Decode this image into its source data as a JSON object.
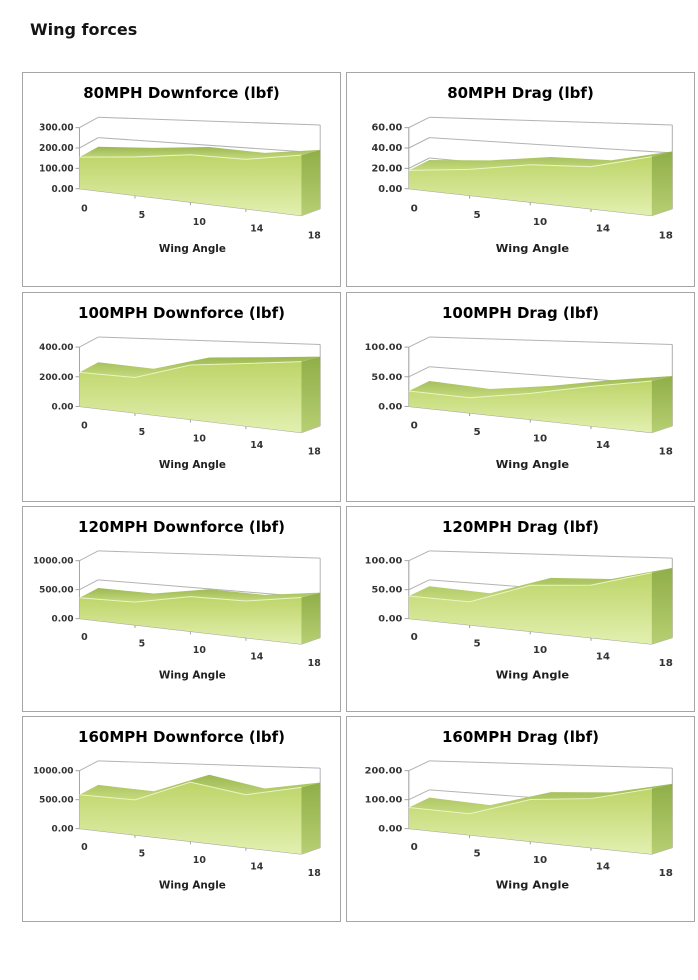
{
  "page": {
    "title": "Wing forces",
    "background": "#ffffff"
  },
  "axis": {
    "categories": [
      "0",
      "5",
      "10",
      "14",
      "18"
    ],
    "xlabel": "Wing Angle"
  },
  "colors": {
    "box_border": "#a6a6a6",
    "grid_line": "#b3b3b3",
    "axis_line": "#a3a3a3",
    "label_text": "#333333",
    "band_dark": "#9cb852",
    "band_light": "#c6da7e",
    "face_top": "#bdd468",
    "face_bottom": "#e2f0b0",
    "side_dark": "#8fae48",
    "side_light": "#b7cf72",
    "highlight": "#eaf4c2"
  },
  "chart_data": {
    "type": "area",
    "variant": "3d-area",
    "categories": [
      0,
      5,
      10,
      14,
      18
    ],
    "xlabel": "Wing Angle",
    "grid": true,
    "legend": "none",
    "charts": [
      {
        "id": "80mph-downforce",
        "title": "80MPH Downforce (lbf)",
        "y_max": 300,
        "y_ticks": [
          "300.00",
          "200.00",
          "100.00",
          "0.00"
        ],
        "values": [
          155,
          170,
          190,
          182,
          205
        ]
      },
      {
        "id": "80mph-drag",
        "title": "80MPH Drag (lbf)",
        "y_max": 60,
        "y_ticks": [
          "60.00",
          "40.00",
          "20.00",
          "0.00"
        ],
        "values": [
          18,
          23,
          30,
          31,
          40
        ]
      },
      {
        "id": "100mph-downforce",
        "title": "100MPH Downforce (lbf)",
        "y_max": 400,
        "y_ticks": [
          "400.00",
          "200.00",
          "0.00"
        ],
        "values": [
          230,
          215,
          300,
          315,
          330
        ]
      },
      {
        "id": "100mph-drag",
        "title": "100MPH Drag (lbf)",
        "y_max": 100,
        "y_ticks": [
          "100.00",
          "50.00",
          "0.00"
        ],
        "values": [
          26,
          23,
          36,
          50,
          60
        ]
      },
      {
        "id": "120mph-downforce",
        "title": "120MPH Downforce (lbf)",
        "y_max": 1000,
        "y_ticks": [
          "1000.00",
          "500.00",
          "0.00"
        ],
        "values": [
          360,
          355,
          490,
          475,
          555
        ]
      },
      {
        "id": "120mph-drag",
        "title": "120MPH Drag (lbf)",
        "y_max": 100,
        "y_ticks": [
          "100.00",
          "50.00",
          "0.00"
        ],
        "values": [
          39,
          36,
          65,
          68,
          85
        ]
      },
      {
        "id": "160mph-downforce",
        "title": "160MPH Downforce (lbf)",
        "y_max": 1000,
        "y_ticks": [
          "1000.00",
          "500.00",
          "0.00"
        ],
        "values": [
          585,
          545,
          835,
          685,
          795
        ]
      },
      {
        "id": "160mph-drag",
        "title": "160MPH Drag (lbf)",
        "y_max": 200,
        "y_ticks": [
          "200.00",
          "100.00",
          "0.00"
        ],
        "values": [
          73,
          66,
          118,
          127,
          156
        ]
      }
    ]
  }
}
